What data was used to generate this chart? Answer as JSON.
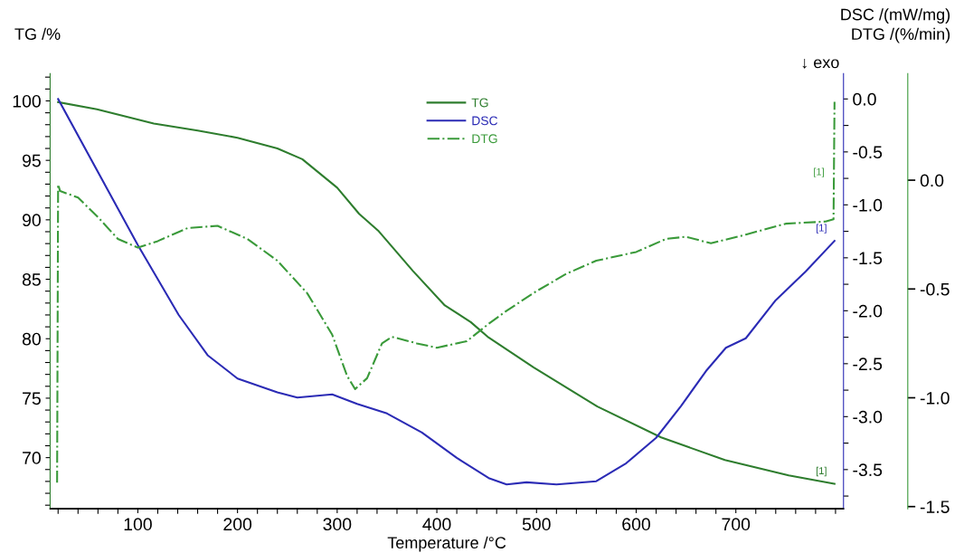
{
  "chart_data": {
    "type": "line",
    "xlabel": "Temperature /°C",
    "ylabel": "TG /%",
    "y2label": "DSC /(mW/mg)",
    "y3label": "DTG /(%/min)",
    "xlim": [
      12,
      808
    ],
    "xticks": [
      {
        "value": 20,
        "label": null
      },
      {
        "value": 40,
        "label": null
      },
      {
        "value": 60,
        "label": null
      },
      {
        "value": 80,
        "label": null
      },
      100,
      {
        "value": 120,
        "label": null
      },
      {
        "value": 140,
        "label": null
      },
      {
        "value": 160,
        "label": null
      },
      {
        "value": 180,
        "label": null
      },
      200,
      {
        "value": 220,
        "label": null
      },
      {
        "value": 240,
        "label": null
      },
      {
        "value": 260,
        "label": null
      },
      {
        "value": 280,
        "label": null
      },
      300,
      {
        "value": 320,
        "label": null
      },
      {
        "value": 340,
        "label": null
      },
      {
        "value": 360,
        "label": null
      },
      {
        "value": 380,
        "label": null
      },
      400,
      {
        "value": 420,
        "label": null
      },
      {
        "value": 440,
        "label": null
      },
      {
        "value": 460,
        "label": null
      },
      {
        "value": 480,
        "label": null
      },
      500,
      {
        "value": 520,
        "label": null
      },
      {
        "value": 540,
        "label": null
      },
      {
        "value": 560,
        "label": null
      },
      {
        "value": 580,
        "label": null
      },
      600,
      {
        "value": 620,
        "label": null
      },
      {
        "value": 640,
        "label": null
      },
      {
        "value": 660,
        "label": null
      },
      {
        "value": 680,
        "label": null
      },
      700,
      {
        "value": 720,
        "label": null
      },
      {
        "value": 740,
        "label": null
      },
      {
        "value": 760,
        "label": null
      },
      {
        "value": 780,
        "label": null
      },
      {
        "value": 800,
        "label": null
      }
    ],
    "ylim": [
      65.7,
      102.3
    ],
    "yticks": [
      {
        "value": 66,
        "label": null
      },
      {
        "value": 67,
        "label": null
      },
      {
        "value": 68,
        "label": null
      },
      {
        "value": 69,
        "label": null
      },
      70,
      {
        "value": 71,
        "label": null
      },
      {
        "value": 72,
        "label": null
      },
      {
        "value": 73,
        "label": null
      },
      {
        "value": 74,
        "label": null
      },
      75,
      {
        "value": 76,
        "label": null
      },
      {
        "value": 77,
        "label": null
      },
      {
        "value": 78,
        "label": null
      },
      {
        "value": 79,
        "label": null
      },
      80,
      {
        "value": 81,
        "label": null
      },
      {
        "value": 82,
        "label": null
      },
      {
        "value": 83,
        "label": null
      },
      {
        "value": 84,
        "label": null
      },
      85,
      {
        "value": 86,
        "label": null
      },
      {
        "value": 87,
        "label": null
      },
      {
        "value": 88,
        "label": null
      },
      {
        "value": 89,
        "label": null
      },
      90,
      {
        "value": 91,
        "label": null
      },
      {
        "value": 92,
        "label": null
      },
      {
        "value": 93,
        "label": null
      },
      {
        "value": 94,
        "label": null
      },
      95,
      {
        "value": 96,
        "label": null
      },
      {
        "value": 97,
        "label": null
      },
      {
        "value": 98,
        "label": null
      },
      {
        "value": 99,
        "label": null
      },
      100,
      {
        "value": 101,
        "label": null
      },
      {
        "value": 102,
        "label": null
      }
    ],
    "y2lim": [
      -3.87,
      0.24
    ],
    "y2ticks": [
      {
        "value": -3.75,
        "label": null
      },
      {
        "value": -3.5,
        "label": "-3.5"
      },
      {
        "value": -3.25,
        "label": null
      },
      {
        "value": -3.0,
        "label": "-3.0"
      },
      {
        "value": -2.75,
        "label": null
      },
      {
        "value": -2.5,
        "label": "-2.5"
      },
      {
        "value": -2.25,
        "label": null
      },
      {
        "value": -2.0,
        "label": "-2.0"
      },
      {
        "value": -1.75,
        "label": null
      },
      {
        "value": -1.5,
        "label": "-1.5"
      },
      {
        "value": -1.25,
        "label": null
      },
      {
        "value": -1.0,
        "label": "-1.0"
      },
      {
        "value": -0.75,
        "label": null
      },
      {
        "value": -0.5,
        "label": "-0.5"
      },
      {
        "value": -0.25,
        "label": null
      },
      {
        "value": 0.0,
        "label": "0.0"
      }
    ],
    "y3lim": [
      -1.51,
      0.49
    ],
    "y3ticks": [
      {
        "value": -1.5,
        "label": "-1.5"
      },
      {
        "value": -1.0,
        "label": "-1.0"
      },
      {
        "value": -0.5,
        "label": "-0.5"
      },
      {
        "value": 0.0,
        "label": "0.0"
      }
    ],
    "grid": false,
    "legend": "top",
    "marker": "none",
    "series": [
      {
        "name": "TG",
        "color": "#2e7d2e",
        "axis": "y",
        "line_style": "solid",
        "x": [
          20,
          59,
          116,
          160,
          200,
          240,
          265,
          300,
          322,
          341,
          376,
          408,
          434,
          452,
          497,
          561,
          625,
          689,
          753,
          799
        ],
        "values": [
          99.9,
          99.3,
          98.1,
          97.5,
          96.9,
          96.0,
          95.1,
          92.7,
          90.5,
          89.1,
          85.7,
          82.8,
          81.4,
          80.1,
          77.6,
          74.3,
          71.7,
          69.8,
          68.5,
          67.8
        ]
      },
      {
        "name": "DSC",
        "color": "#2b2bb5",
        "axis": "y2",
        "line_style": "solid",
        "x": [
          20,
          100,
          141,
          170,
          200,
          240,
          260,
          295,
          320,
          350,
          385,
          420,
          452,
          470,
          490,
          520,
          560,
          590,
          620,
          645,
          670,
          690,
          710,
          740,
          770,
          799
        ],
        "values": [
          0.0,
          -1.38,
          -2.04,
          -2.42,
          -2.64,
          -2.77,
          -2.82,
          -2.79,
          -2.88,
          -2.97,
          -3.15,
          -3.39,
          -3.58,
          -3.64,
          -3.62,
          -3.64,
          -3.61,
          -3.44,
          -3.2,
          -2.9,
          -2.57,
          -2.35,
          -2.26,
          -1.9,
          -1.63,
          -1.34
        ]
      },
      {
        "name": "DTG",
        "color": "#3a9a3a",
        "axis": "y3",
        "line_style": "dashdot",
        "x": [
          19,
          20,
          22,
          40,
          60,
          80,
          100,
          120,
          150,
          180,
          210,
          240,
          270,
          295,
          310,
          318,
          330,
          345,
          355,
          380,
          400,
          430,
          452,
          470,
          500,
          530,
          560,
          600,
          630,
          650,
          675,
          710,
          750,
          790,
          798,
          799
        ],
        "values": [
          -1.39,
          -0.02,
          -0.05,
          -0.08,
          -0.17,
          -0.27,
          -0.31,
          -0.28,
          -0.22,
          -0.21,
          -0.27,
          -0.37,
          -0.52,
          -0.71,
          -0.9,
          -0.96,
          -0.91,
          -0.75,
          -0.72,
          -0.75,
          -0.77,
          -0.74,
          -0.66,
          -0.6,
          -0.51,
          -0.43,
          -0.37,
          -0.33,
          -0.27,
          -0.26,
          -0.29,
          -0.25,
          -0.2,
          -0.19,
          -0.18,
          0.36
        ]
      }
    ],
    "annotations": [
      "↓ exo",
      "[1]",
      "[1]",
      "[1]"
    ]
  }
}
